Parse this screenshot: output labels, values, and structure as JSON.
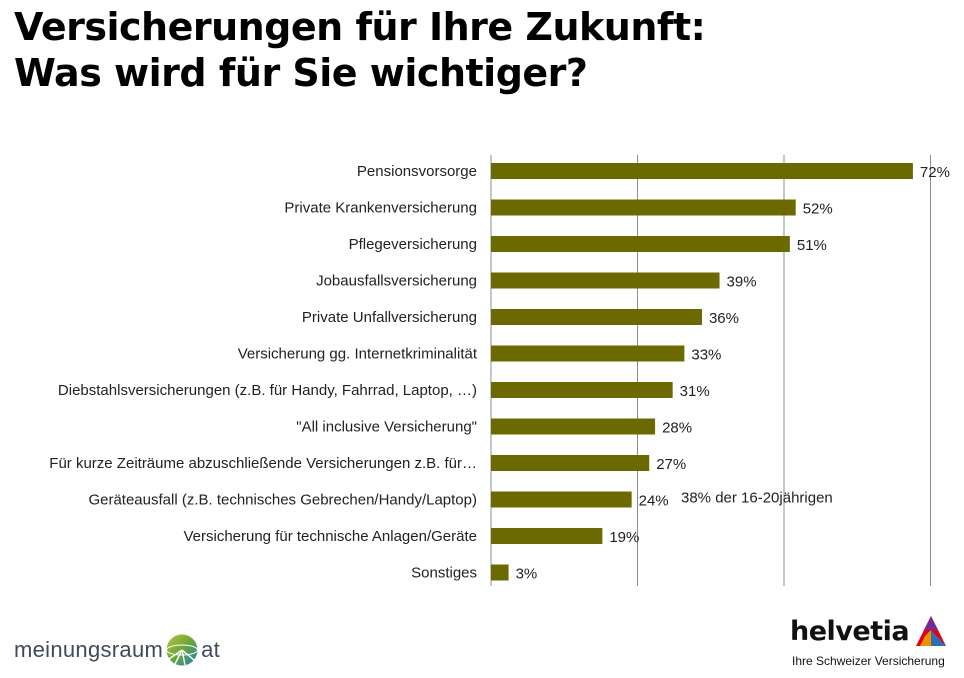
{
  "title": {
    "line1": "Versicherungen für Ihre Zukunft:",
    "line2": "Was wird für Sie wichtiger?"
  },
  "chart_data": {
    "type": "bar",
    "orientation": "horizontal",
    "title": "Versicherungen für Ihre Zukunft: Was wird für Sie wichtiger?",
    "xlabel": "",
    "ylabel": "",
    "xlim": [
      0,
      80
    ],
    "grid": true,
    "bar_color": "#6b6a00",
    "categories": [
      "Pensionsvorsorge",
      "Private Krankenversicherung",
      "Pflegeversicherung",
      "Jobausfallsversicherung",
      "Private Unfallversicherung",
      "Versicherung gg. Internetkriminalität",
      "Diebstahlsversicherungen (z.B. für Handy, Fahrrad, Laptop, …)",
      "\"All inclusive Versicherung\"",
      "Für kurze Zeiträume abzuschließende Versicherungen z.B. für…",
      "Geräteausfall (z.B. technisches Gebrechen/Handy/Laptop)",
      "Versicherung für technische Anlagen/Geräte",
      "Sonstiges"
    ],
    "values": [
      72,
      52,
      51,
      39,
      36,
      33,
      31,
      28,
      27,
      24,
      19,
      3
    ],
    "data_labels": [
      "72%",
      "52%",
      "51%",
      "39%",
      "36%",
      "33%",
      "31%",
      "28%",
      "27%",
      "24%",
      "19%",
      "3%"
    ],
    "annotations": [
      {
        "category_index": 9,
        "text": "38% der 16-20jährigen"
      }
    ]
  },
  "logos": {
    "left": {
      "text_before": "meinungsraum",
      "text_after": "at"
    },
    "right": {
      "name": "helvetia",
      "tagline": "Ihre Schweizer Versicherung"
    }
  },
  "colors": {
    "bar": "#6b6a00",
    "grid": "#8c8c8c",
    "logo_red": "#e2001a",
    "logo_blue": "#2f6db5"
  }
}
